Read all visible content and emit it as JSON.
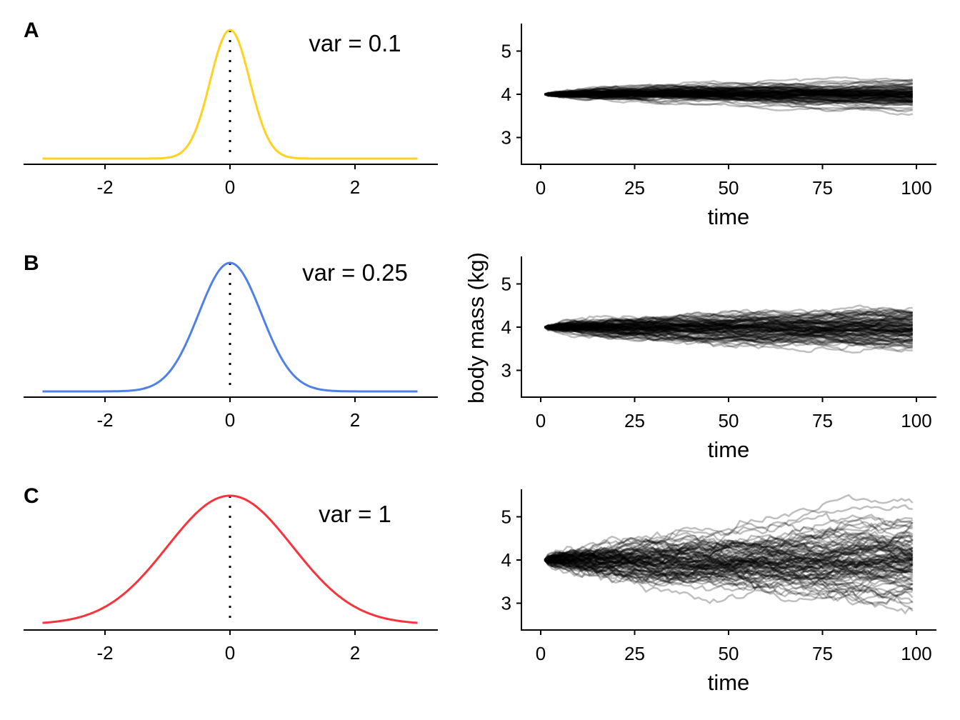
{
  "chart_data": [
    {
      "panel": "A",
      "type": "line",
      "annotation": "var = 0.1",
      "series": [
        {
          "distribution": "normal",
          "mean": 0,
          "variance": 0.1,
          "color": "#FFD21F"
        }
      ],
      "xlim": [
        -3,
        3
      ],
      "x_ticks": [
        "-2",
        "0",
        "2"
      ],
      "reference_line": {
        "x": 0,
        "style": "dotted"
      }
    },
    {
      "panel": "A",
      "type": "line",
      "simulation": {
        "start": 4,
        "variance": 0.1,
        "paths": 100,
        "color": "#000000",
        "opacity": 0.25
      },
      "xlabel": "time",
      "xlim": [
        0,
        100
      ],
      "ylim": [
        2.4,
        5.6
      ],
      "x_ticks": [
        "0",
        "25",
        "50",
        "75",
        "100"
      ],
      "y_ticks": [
        "3",
        "4",
        "5"
      ]
    },
    {
      "panel": "B",
      "type": "line",
      "annotation": "var = 0.25",
      "series": [
        {
          "distribution": "normal",
          "mean": 0,
          "variance": 0.25,
          "color": "#4F7FE8"
        }
      ],
      "xlim": [
        -3,
        3
      ],
      "x_ticks": [
        "-2",
        "0",
        "2"
      ],
      "reference_line": {
        "x": 0,
        "style": "dotted"
      }
    },
    {
      "panel": "B",
      "type": "line",
      "simulation": {
        "start": 4,
        "variance": 0.25,
        "paths": 100,
        "color": "#000000",
        "opacity": 0.25
      },
      "xlabel": "time",
      "ylabel": "body mass (kg)",
      "xlim": [
        0,
        100
      ],
      "ylim": [
        2.4,
        5.6
      ],
      "x_ticks": [
        "0",
        "25",
        "50",
        "75",
        "100"
      ],
      "y_ticks": [
        "3",
        "4",
        "5"
      ]
    },
    {
      "panel": "C",
      "type": "line",
      "annotation": "var = 1",
      "series": [
        {
          "distribution": "normal",
          "mean": 0,
          "variance": 1,
          "color": "#F8333C"
        }
      ],
      "xlim": [
        -3,
        3
      ],
      "x_ticks": [
        "-2",
        "0",
        "2"
      ],
      "reference_line": {
        "x": 0,
        "style": "dotted"
      }
    },
    {
      "panel": "C",
      "type": "line",
      "simulation": {
        "start": 4,
        "variance": 1,
        "paths": 100,
        "color": "#000000",
        "opacity": 0.25
      },
      "xlabel": "time",
      "xlim": [
        0,
        100
      ],
      "ylim": [
        2.4,
        5.6
      ],
      "x_ticks": [
        "0",
        "25",
        "50",
        "75",
        "100"
      ],
      "y_ticks": [
        "3",
        "4",
        "5"
      ]
    }
  ]
}
